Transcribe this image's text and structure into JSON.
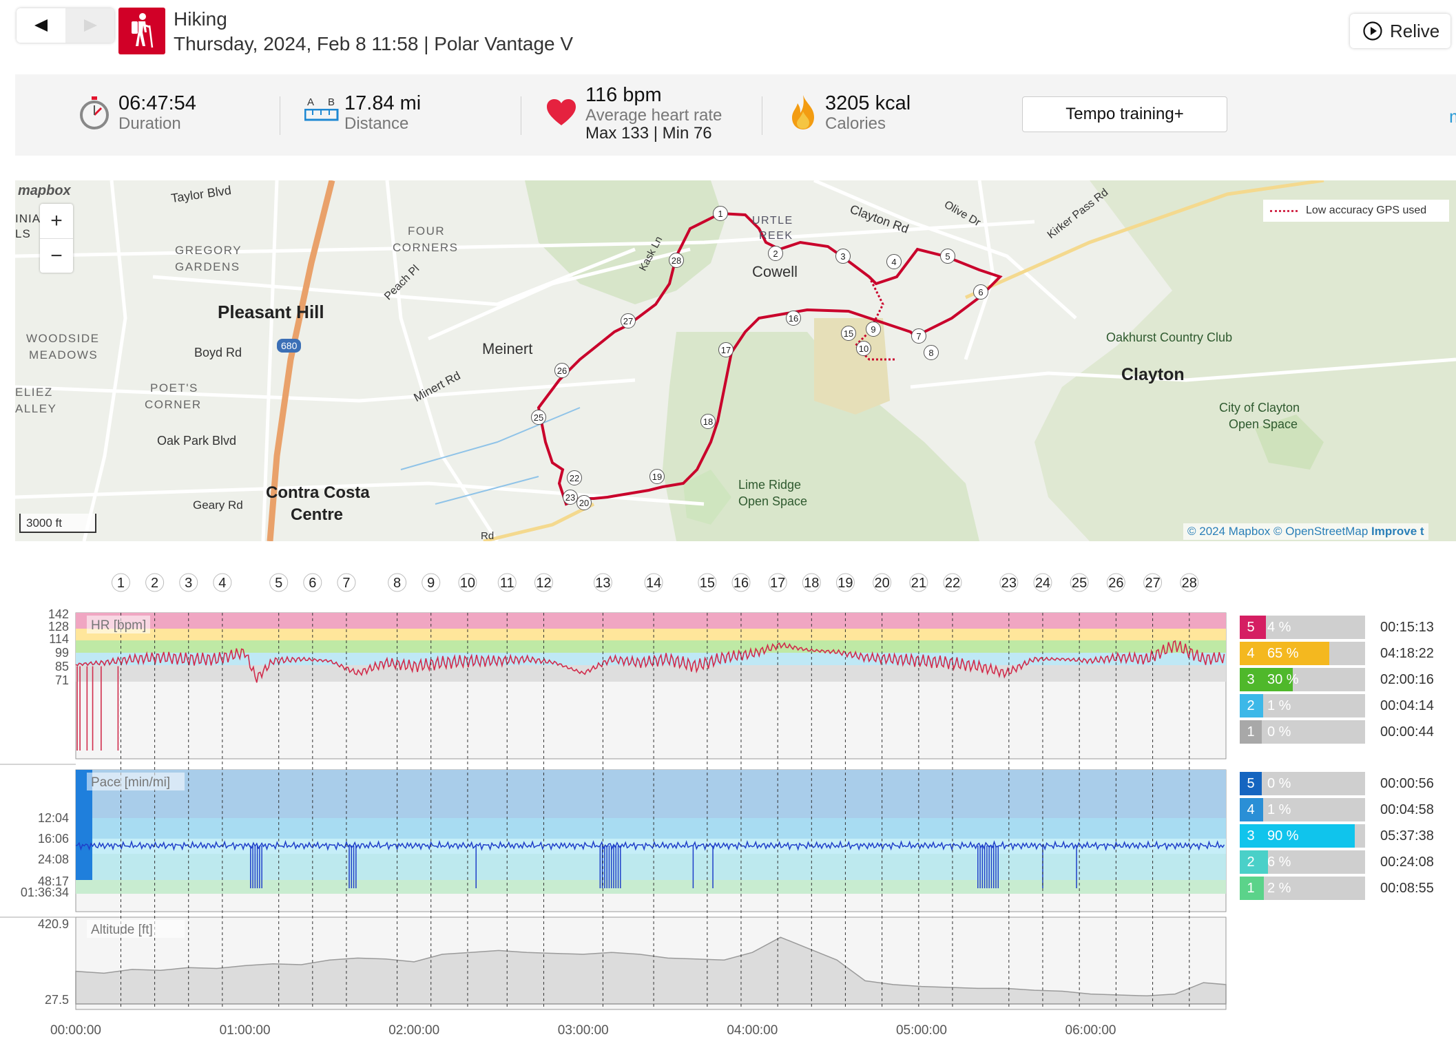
{
  "header": {
    "sport": "Hiking",
    "subtitle": "Thursday, 2024, Feb 8 11:58 | Polar Vantage V",
    "relive_label": "Relive",
    "sport_icon": "hiking-icon",
    "accent": "#d10027"
  },
  "summary": {
    "duration_value": "06:47:54",
    "duration_label": "Duration",
    "distance_value": "17.84 mi",
    "distance_label": "Distance",
    "distance_icon_a": "A",
    "distance_icon_b": "B",
    "hr_value": "116 bpm",
    "hr_label": "Average heart rate",
    "hr_minmax": "Max 133  |  Min 76",
    "calories_value": "3205 kcal",
    "calories_label": "Calories",
    "training_button": "Tempo training+",
    "more_link": "mo"
  },
  "map": {
    "logo": "mapbox",
    "zoom_in": "+",
    "zoom_out": "−",
    "scale": "3000 ft",
    "gps_legend": "Low accuracy GPS used",
    "attribution_1": "© 2024 Mapbox",
    "attribution_2": "© OpenStreetMap",
    "attribution_3": "Improve t",
    "places": {
      "taylor": "Taylor Blvd",
      "inia": "INIA",
      "ls": "LS",
      "gregory1": "GREGORY",
      "gregory2": "GARDENS",
      "four1": "FOUR",
      "four2": "CORNERS",
      "peach": "Peach Pl",
      "pleasant_hill": "Pleasant Hill",
      "boyd": "Boyd Rd",
      "woodside1": "WOODSIDE",
      "woodside2": "MEADOWS",
      "meinert": "Meinert",
      "minert_rd": "Minert Rd",
      "poets1": "POET'S",
      "poets2": "CORNER",
      "reliez1": "ELIEZ",
      "reliez2": "ALLEY",
      "oak_park": "Oak Park Blvd",
      "geary": "Geary Rd",
      "contra1": "Contra Costa",
      "contra2": "Centre",
      "kask": "Kask Ln",
      "turtle1": "URTLE",
      "turtle2": "REEK",
      "cowell": "Cowell",
      "clayton_rd": "Clayton Rd",
      "olive": "Olive Dr",
      "kirker": "Kirker Pass Rd",
      "oakhurst": "Oakhurst Country Club",
      "clayton": "Clayton",
      "city_clayton1": "City of Clayton",
      "city_clayton2": "Open Space",
      "lime1": "Lime Ridge",
      "lime2": "Open Space",
      "hwy680": "680",
      "rd": "Rd"
    },
    "route_markers": [
      "1",
      "2",
      "3",
      "4",
      "5",
      "6",
      "7",
      "8",
      "9",
      "10",
      "15",
      "16",
      "17",
      "18",
      "19",
      "20",
      "22",
      "23",
      "25",
      "26",
      "27",
      "28"
    ]
  },
  "chart_data": [
    {
      "type": "line",
      "title": "HR [bpm]",
      "x_unit": "elapsed time",
      "x_ticks": [
        "00:00:00",
        "01:00:00",
        "02:00:00",
        "03:00:00",
        "04:00:00",
        "05:00:00",
        "06:00:00"
      ],
      "y_ticks": [
        "142",
        "128",
        "114",
        "99",
        "85",
        "71"
      ],
      "lap_labels": [
        "1",
        "2",
        "3",
        "4",
        "5",
        "6",
        "7",
        "8",
        "9",
        "10",
        "11",
        "12",
        "13",
        "14",
        "15",
        "16",
        "17",
        "18",
        "19",
        "20",
        "21",
        "22",
        "23",
        "24",
        "25",
        "26",
        "27",
        "28"
      ],
      "lap_times_min": [
        16,
        28,
        40,
        52,
        72,
        84,
        96,
        114,
        126,
        139,
        153,
        166,
        187,
        205,
        224,
        236,
        249,
        261,
        273,
        286,
        299,
        311,
        331,
        343,
        356,
        369,
        382,
        395
      ],
      "series": [
        {
          "color": "#d12b4b",
          "x_min": [
            0,
            10,
            20,
            30,
            40,
            50,
            60,
            64,
            70,
            80,
            90,
            100,
            110,
            120,
            130,
            140,
            150,
            160,
            170,
            180,
            190,
            200,
            210,
            220,
            230,
            240,
            250,
            260,
            270,
            280,
            290,
            300,
            310,
            320,
            330,
            340,
            350,
            360,
            370,
            380,
            390,
            400,
            408
          ],
          "values": [
            113,
            114,
            116,
            117,
            116,
            116,
            120,
            105,
            115,
            116,
            115,
            108,
            114,
            112,
            114,
            115,
            115,
            116,
            114,
            108,
            116,
            114,
            116,
            112,
            117,
            119,
            124,
            121,
            120,
            117,
            116,
            115,
            114,
            112,
            108,
            116,
            116,
            115,
            117,
            116,
            124,
            116,
            117
          ]
        }
      ],
      "zones_colors": [
        "#f0a6c2",
        "#ffe69b",
        "#bfe9a5",
        "#bfe8f5",
        "#dedede"
      ],
      "ylim": [
        0,
        142
      ]
    },
    {
      "type": "line",
      "title": "Pace [min/mi]",
      "x_unit": "elapsed time",
      "y_ticks": [
        "12:04",
        "16:06",
        "24:08",
        "48:17",
        "01:36:34"
      ],
      "series": [
        {
          "color": "#1f3fc9",
          "x_min": [
            0,
            20,
            40,
            60,
            62,
            70,
            80,
            100,
            110,
            120,
            140,
            160,
            180,
            186,
            192,
            200,
            220,
            240,
            260,
            300,
            320,
            340,
            360,
            380,
            400,
            408
          ],
          "values": [
            24,
            24,
            24,
            24,
            80,
            24,
            24,
            24,
            60,
            24,
            24,
            24,
            24,
            60,
            24,
            24,
            24,
            24,
            24,
            24,
            24,
            24,
            24,
            24,
            24,
            24
          ]
        }
      ]
    },
    {
      "type": "area",
      "title": "Altitude [ft]",
      "x_unit": "elapsed time",
      "y_ticks": [
        "420.9",
        "27.5"
      ],
      "series": [
        {
          "color": "#b0b0b0",
          "x_min": [
            0,
            10,
            20,
            30,
            40,
            50,
            60,
            70,
            80,
            90,
            100,
            110,
            120,
            130,
            140,
            150,
            160,
            170,
            180,
            190,
            200,
            210,
            220,
            230,
            240,
            250,
            260,
            270,
            280,
            290,
            300,
            310,
            320,
            330,
            340,
            350,
            360,
            370,
            380,
            390,
            400,
            408
          ],
          "values": [
            200,
            190,
            210,
            205,
            220,
            215,
            230,
            240,
            235,
            260,
            270,
            265,
            250,
            290,
            300,
            310,
            300,
            295,
            290,
            300,
            290,
            270,
            265,
            260,
            300,
            380,
            320,
            260,
            150,
            130,
            120,
            115,
            110,
            110,
            100,
            95,
            80,
            75,
            70,
            80,
            140,
            130
          ]
        }
      ],
      "ylim": [
        27.5,
        420.9
      ]
    }
  ],
  "zones": {
    "hr": [
      {
        "n": "5",
        "pct": "4 %",
        "fill": 0.04,
        "time": "00:15:13",
        "color": "#d51e62"
      },
      {
        "n": "4",
        "pct": "65 %",
        "fill": 0.65,
        "time": "04:18:22",
        "color": "#f4b81f"
      },
      {
        "n": "3",
        "pct": "30 %",
        "fill": 0.3,
        "time": "02:00:16",
        "color": "#4fb82b"
      },
      {
        "n": "2",
        "pct": "1 %",
        "fill": 0.01,
        "time": "00:04:14",
        "color": "#3cb8e8"
      },
      {
        "n": "1",
        "pct": "0 %",
        "fill": 0.0,
        "time": "00:00:44",
        "color": "#a8a8a8"
      }
    ],
    "pace": [
      {
        "n": "5",
        "pct": "0 %",
        "fill": 0.0,
        "time": "00:00:56",
        "color": "#1565c0"
      },
      {
        "n": "4",
        "pct": "1 %",
        "fill": 0.01,
        "time": "00:04:58",
        "color": "#2a8fd6"
      },
      {
        "n": "3",
        "pct": "90 %",
        "fill": 0.9,
        "time": "05:37:38",
        "color": "#10c4ec"
      },
      {
        "n": "2",
        "pct": "6 %",
        "fill": 0.06,
        "time": "00:24:08",
        "color": "#4ad0c8"
      },
      {
        "n": "1",
        "pct": "2 %",
        "fill": 0.02,
        "time": "00:08:55",
        "color": "#5bd38a"
      }
    ]
  }
}
